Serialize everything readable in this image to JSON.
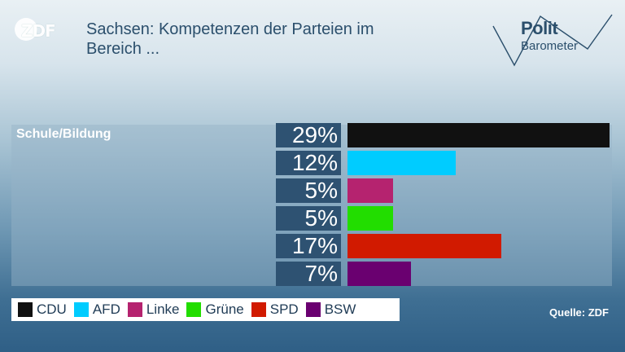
{
  "header": {
    "logo_text": "ZDF",
    "title_line1": "Sachsen: Kompetenzen der Parteien im",
    "title_line2": "Bereich ...",
    "brand_line1": "Polit",
    "brand_line2": "Barometer"
  },
  "chart_data": {
    "type": "bar",
    "orientation": "horizontal",
    "category": "Schule/Bildung",
    "categories": [
      "CDU",
      "AFD",
      "Linke",
      "Grüne",
      "SPD",
      "BSW"
    ],
    "values": [
      29,
      12,
      5,
      5,
      17,
      7
    ],
    "labels": [
      "29%",
      "12%",
      "5%",
      "5%",
      "17%",
      "7%"
    ],
    "colors": [
      "#111111",
      "#00ccff",
      "#b5236f",
      "#22dd00",
      "#d11a00",
      "#6a0070"
    ],
    "xlim": [
      0,
      29
    ],
    "legend_position": "bottom-left"
  },
  "footer": {
    "source": "Quelle: ZDF"
  }
}
